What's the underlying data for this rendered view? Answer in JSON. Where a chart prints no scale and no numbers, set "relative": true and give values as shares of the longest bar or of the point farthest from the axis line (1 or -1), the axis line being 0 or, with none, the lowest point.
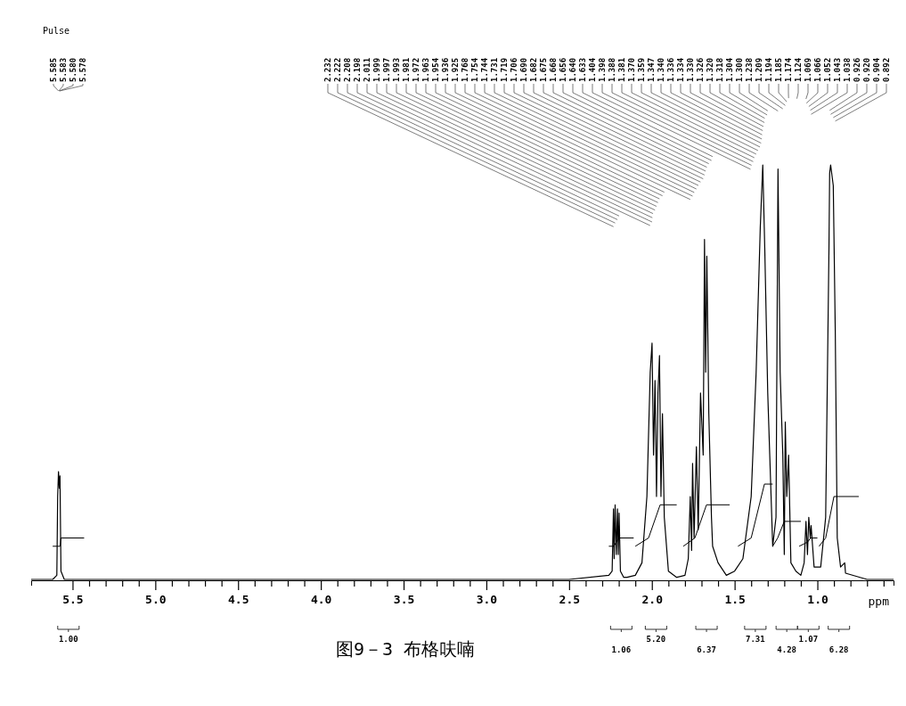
{
  "chart_data": {
    "type": "line",
    "relative": true,
    "xlabel": "ppm",
    "marker": "none",
    "line_style": "solid",
    "grid": false,
    "xlim": [
      5.75,
      0.54
    ],
    "xticks": [
      {
        "value": 5.5,
        "label": "5.5"
      },
      {
        "value": 5.4,
        "label": null
      },
      {
        "value": 5.3,
        "label": null
      },
      {
        "value": 5.2,
        "label": null
      },
      {
        "value": 5.1,
        "label": null
      },
      {
        "value": 5.0,
        "label": "5.0"
      },
      {
        "value": 4.9,
        "label": null
      },
      {
        "value": 4.8,
        "label": null
      },
      {
        "value": 4.7,
        "label": null
      },
      {
        "value": 4.6,
        "label": null
      },
      {
        "value": 4.5,
        "label": "4.5"
      },
      {
        "value": 4.4,
        "label": null
      },
      {
        "value": 4.3,
        "label": null
      },
      {
        "value": 4.2,
        "label": null
      },
      {
        "value": 4.1,
        "label": null
      },
      {
        "value": 4.0,
        "label": "4.0"
      },
      {
        "value": 3.9,
        "label": null
      },
      {
        "value": 3.8,
        "label": null
      },
      {
        "value": 3.7,
        "label": null
      },
      {
        "value": 3.6,
        "label": null
      },
      {
        "value": 3.5,
        "label": "3.5"
      },
      {
        "value": 3.4,
        "label": null
      },
      {
        "value": 3.3,
        "label": null
      },
      {
        "value": 3.2,
        "label": null
      },
      {
        "value": 3.1,
        "label": null
      },
      {
        "value": 3.0,
        "label": "3.0"
      },
      {
        "value": 2.9,
        "label": null
      },
      {
        "value": 2.8,
        "label": null
      },
      {
        "value": 2.7,
        "label": null
      },
      {
        "value": 2.6,
        "label": null
      },
      {
        "value": 2.5,
        "label": "2.5"
      },
      {
        "value": 2.4,
        "label": null
      },
      {
        "value": 2.3,
        "label": null
      },
      {
        "value": 2.2,
        "label": null
      },
      {
        "value": 2.1,
        "label": null
      },
      {
        "value": 2.0,
        "label": "2.0"
      },
      {
        "value": 1.9,
        "label": null
      },
      {
        "value": 1.8,
        "label": null
      },
      {
        "value": 1.7,
        "label": null
      },
      {
        "value": 1.6,
        "label": null
      },
      {
        "value": 1.5,
        "label": "1.5"
      },
      {
        "value": 1.4,
        "label": null
      },
      {
        "value": 1.3,
        "label": null
      },
      {
        "value": 1.2,
        "label": null
      },
      {
        "value": 1.1,
        "label": null
      },
      {
        "value": 1.0,
        "label": "1.0"
      },
      {
        "value": 0.9,
        "label": null
      },
      {
        "value": 0.8,
        "label": null
      },
      {
        "value": 0.7,
        "label": null
      },
      {
        "value": 0.6,
        "label": null
      }
    ],
    "series": [
      {
        "color": "#000000",
        "x": [
          5.75,
          5.62,
          5.595,
          5.59,
          5.585,
          5.58,
          5.576,
          5.57,
          5.55,
          5.0,
          4.0,
          3.0,
          2.5,
          2.26,
          2.24,
          2.232,
          2.228,
          2.222,
          2.215,
          2.208,
          2.203,
          2.198,
          2.19,
          2.17,
          2.15,
          2.1,
          2.06,
          2.03,
          2.01,
          1.999,
          1.99,
          1.981,
          1.972,
          1.963,
          1.954,
          1.945,
          1.936,
          1.925,
          1.9,
          1.85,
          1.8,
          1.78,
          1.768,
          1.76,
          1.754,
          1.745,
          1.731,
          1.72,
          1.706,
          1.69,
          1.682,
          1.675,
          1.668,
          1.656,
          1.64,
          1.633,
          1.6,
          1.55,
          1.5,
          1.45,
          1.4,
          1.37,
          1.345,
          1.33,
          1.318,
          1.3,
          1.27,
          1.25,
          1.238,
          1.225,
          1.209,
          1.2,
          1.194,
          1.185,
          1.174,
          1.16,
          1.13,
          1.1,
          1.08,
          1.069,
          1.06,
          1.052,
          1.043,
          1.038,
          1.02,
          0.98,
          0.95,
          0.93,
          0.926,
          0.92,
          0.904,
          0.892,
          0.88,
          0.86,
          0.835,
          0.83,
          0.7,
          0.54
        ],
        "values": [
          0,
          0,
          0.01,
          0.2,
          0.26,
          0.22,
          0.25,
          0.02,
          0,
          0,
          0,
          0,
          0,
          0.01,
          0.02,
          0.17,
          0.05,
          0.18,
          0.06,
          0.17,
          0.06,
          0.16,
          0.02,
          0.005,
          0.005,
          0.01,
          0.04,
          0.2,
          0.5,
          0.57,
          0.3,
          0.48,
          0.2,
          0.45,
          0.54,
          0.2,
          0.4,
          0.15,
          0.02,
          0.005,
          0.01,
          0.05,
          0.2,
          0.07,
          0.28,
          0.1,
          0.32,
          0.12,
          0.45,
          0.3,
          0.82,
          0.5,
          0.78,
          0.4,
          0.15,
          0.08,
          0.04,
          0.01,
          0.02,
          0.05,
          0.2,
          0.5,
          0.85,
          1,
          0.8,
          0.45,
          0.08,
          0.15,
          0.99,
          0.5,
          0.3,
          0.06,
          0.38,
          0.2,
          0.3,
          0.04,
          0.02,
          0.01,
          0.04,
          0.14,
          0.06,
          0.15,
          0.1,
          0.13,
          0.03,
          0.03,
          0.15,
          0.8,
          0.98,
          1,
          0.95,
          0.6,
          0.1,
          0.03,
          0.04,
          0.015,
          0,
          0
        ]
      },
      {
        "color": "#000000",
        "x": [
          5.62,
          5.575,
          5.57,
          5.43
        ],
        "values": [
          0.08,
          0.08,
          0.1,
          0.1
        ]
      },
      {
        "color": "#000000",
        "x": [
          2.26,
          2.23,
          2.2,
          2.11
        ],
        "values": [
          0.08,
          0.08,
          0.1,
          0.1
        ]
      },
      {
        "color": "#000000",
        "x": [
          2.1,
          2.02,
          1.95,
          1.85
        ],
        "values": [
          0.08,
          0.1,
          0.18,
          0.18
        ]
      },
      {
        "color": "#000000",
        "x": [
          1.81,
          1.74,
          1.67,
          1.53
        ],
        "values": [
          0.08,
          0.1,
          0.18,
          0.18
        ]
      },
      {
        "color": "#000000",
        "x": [
          1.48,
          1.4,
          1.32,
          1.27
        ],
        "values": [
          0.08,
          0.1,
          0.23,
          0.23
        ]
      },
      {
        "color": "#000000",
        "x": [
          1.27,
          1.24,
          1.2,
          1.1
        ],
        "values": [
          0.08,
          0.1,
          0.14,
          0.14
        ]
      },
      {
        "color": "#000000",
        "x": [
          1.11,
          1.06,
          1.04,
          1.0
        ],
        "values": [
          0.08,
          0.09,
          0.1,
          0.1
        ]
      },
      {
        "color": "#000000",
        "x": [
          0.99,
          0.95,
          0.9,
          0.75
        ],
        "values": [
          0.08,
          0.1,
          0.2,
          0.2
        ]
      }
    ],
    "annotations": [
      "Pulse",
      "图9－3 布格呋喃",
      "1.00",
      "1.06",
      "5.20",
      "6.37",
      "7.31",
      "4.28",
      "1.07",
      "6.28",
      {
        "text": "5.585",
        "x": 5.585
      },
      {
        "text": "5.583",
        "x": 5.583
      },
      {
        "text": "5.580",
        "x": 5.58
      },
      {
        "text": "5.578",
        "x": 5.578
      },
      {
        "text": "2.232",
        "x": 2.232
      },
      {
        "text": "2.222",
        "x": 2.222
      },
      {
        "text": "2.208",
        "x": 2.208
      },
      {
        "text": "2.198",
        "x": 2.198
      },
      {
        "text": "2.011",
        "x": 2.011
      },
      {
        "text": "1.999",
        "x": 1.999
      },
      {
        "text": "1.997",
        "x": 1.997
      },
      {
        "text": "1.993",
        "x": 1.993
      },
      {
        "text": "1.981",
        "x": 1.981
      },
      {
        "text": "1.972",
        "x": 1.972
      },
      {
        "text": "1.963",
        "x": 1.963
      },
      {
        "text": "1.954",
        "x": 1.954
      },
      {
        "text": "1.936",
        "x": 1.936
      },
      {
        "text": "1.925",
        "x": 1.925
      },
      {
        "text": "1.768",
        "x": 1.768
      },
      {
        "text": "1.754",
        "x": 1.754
      },
      {
        "text": "1.744",
        "x": 1.744
      },
      {
        "text": "1.731",
        "x": 1.731
      },
      {
        "text": "1.719",
        "x": 1.719
      },
      {
        "text": "1.706",
        "x": 1.706
      },
      {
        "text": "1.690",
        "x": 1.69
      },
      {
        "text": "1.682",
        "x": 1.682
      },
      {
        "text": "1.675",
        "x": 1.675
      },
      {
        "text": "1.668",
        "x": 1.668
      },
      {
        "text": "1.656",
        "x": 1.656
      },
      {
        "text": "1.640",
        "x": 1.64
      },
      {
        "text": "1.633",
        "x": 1.633
      },
      {
        "text": "1.404",
        "x": 1.404
      },
      {
        "text": "1.398",
        "x": 1.398
      },
      {
        "text": "1.388",
        "x": 1.388
      },
      {
        "text": "1.381",
        "x": 1.381
      },
      {
        "text": "1.370",
        "x": 1.37
      },
      {
        "text": "1.359",
        "x": 1.359
      },
      {
        "text": "1.347",
        "x": 1.347
      },
      {
        "text": "1.340",
        "x": 1.34
      },
      {
        "text": "1.336",
        "x": 1.336
      },
      {
        "text": "1.334",
        "x": 1.334
      },
      {
        "text": "1.330",
        "x": 1.33
      },
      {
        "text": "1.326",
        "x": 1.326
      },
      {
        "text": "1.320",
        "x": 1.32
      },
      {
        "text": "1.318",
        "x": 1.318
      },
      {
        "text": "1.304",
        "x": 1.304
      },
      {
        "text": "1.300",
        "x": 1.3
      },
      {
        "text": "1.238",
        "x": 1.238
      },
      {
        "text": "1.209",
        "x": 1.209
      },
      {
        "text": "1.194",
        "x": 1.194
      },
      {
        "text": "1.185",
        "x": 1.185
      },
      {
        "text": "1.174",
        "x": 1.174
      },
      {
        "text": "1.124",
        "x": 1.124
      },
      {
        "text": "1.069",
        "x": 1.069
      },
      {
        "text": "1.066",
        "x": 1.066
      },
      {
        "text": "1.052",
        "x": 1.052
      },
      {
        "text": "1.043",
        "x": 1.043
      },
      {
        "text": "1.038",
        "x": 1.038
      },
      {
        "text": "0.926",
        "x": 0.926
      },
      {
        "text": "0.920",
        "x": 0.92
      },
      {
        "text": "0.904",
        "x": 0.904
      },
      {
        "text": "0.892",
        "x": 0.892
      }
    ]
  }
}
